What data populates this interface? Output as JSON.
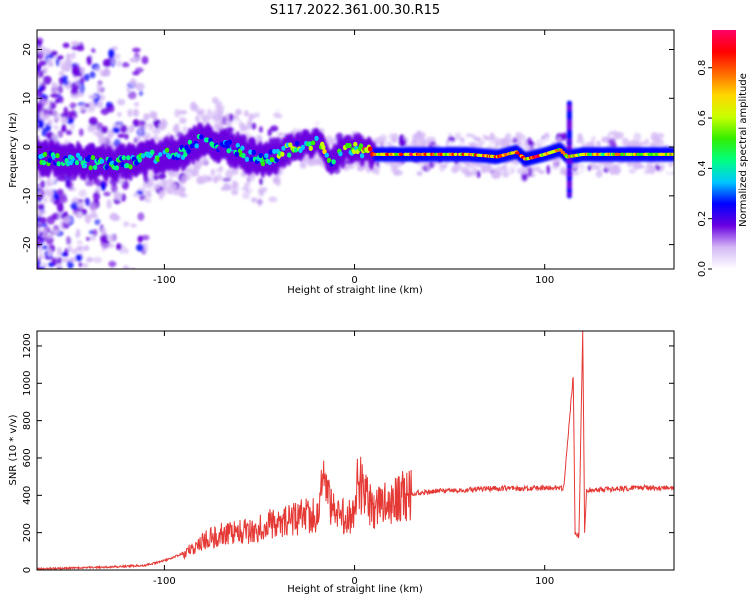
{
  "title": "S117.2022.361.00.30.R15",
  "chart_data": [
    {
      "type": "heatmap",
      "xlabel": "Height of straight line (km)",
      "ylabel": "Frequency (Hz)",
      "xlim": [
        -167,
        168
      ],
      "ylim": [
        -25,
        24
      ],
      "xticks": [
        -100,
        0,
        100
      ],
      "yticks": [
        -20,
        -10,
        0,
        10,
        20
      ],
      "colorbar": {
        "label": "Normalized spectral amplitude",
        "range": [
          0,
          0.95
        ],
        "ticks": [
          0.0,
          0.2,
          0.4,
          0.6,
          0.8
        ],
        "colormap": [
          "#ffffff",
          "#d4b8f5",
          "#6a00e0",
          "#0000ff",
          "#00c8ff",
          "#00ff80",
          "#33ee00",
          "#c8ff00",
          "#ffd700",
          "#ff6a00",
          "#ff0000",
          "#ff0066"
        ]
      },
      "ridge": [
        {
          "x": -167,
          "y": -2.0
        },
        {
          "x": -150,
          "y": -2.5
        },
        {
          "x": -130,
          "y": -3.5
        },
        {
          "x": -110,
          "y": -2.5
        },
        {
          "x": -90,
          "y": -1.0
        },
        {
          "x": -80,
          "y": 1.5
        },
        {
          "x": -70,
          "y": 0.5
        },
        {
          "x": -60,
          "y": -1.0
        },
        {
          "x": -50,
          "y": -2.5
        },
        {
          "x": -40,
          "y": -1.5
        },
        {
          "x": -30,
          "y": 0.0
        },
        {
          "x": -20,
          "y": 1.0
        },
        {
          "x": -12,
          "y": -3.0
        },
        {
          "x": -5,
          "y": -1.0
        },
        {
          "x": 0,
          "y": 0.0
        },
        {
          "x": 10,
          "y": -1.5
        },
        {
          "x": 40,
          "y": -1.5
        },
        {
          "x": 60,
          "y": -1.5
        },
        {
          "x": 75,
          "y": -2.0
        },
        {
          "x": 85,
          "y": -1.0
        },
        {
          "x": 90,
          "y": -2.5
        },
        {
          "x": 100,
          "y": -1.5
        },
        {
          "x": 108,
          "y": -0.5
        },
        {
          "x": 112,
          "y": -2.0
        },
        {
          "x": 120,
          "y": -1.5
        },
        {
          "x": 168,
          "y": -1.5
        }
      ],
      "spike": {
        "x": 113,
        "y_range": [
          -10,
          9
        ]
      }
    },
    {
      "type": "line",
      "xlabel": "Height of straight line (km)",
      "ylabel": "SNR (10 * v/v)",
      "xlim": [
        -167,
        168
      ],
      "ylim": [
        0,
        1280
      ],
      "xticks": [
        -100,
        0,
        100
      ],
      "yticks": [
        0,
        200,
        400,
        600,
        800,
        1000,
        1200
      ],
      "color": "#e53935",
      "series": [
        {
          "x": [
            -167,
            -150,
            -130,
            -110,
            -100,
            -90,
            -80,
            -70,
            -60,
            -50,
            -40,
            -30,
            -20,
            -16,
            -10,
            0,
            1,
            10,
            20,
            30,
            40,
            60,
            80,
            90,
            100,
            110,
            115,
            116,
            118,
            120,
            121,
            122,
            130,
            150,
            168
          ],
          "y": [
            5,
            10,
            15,
            25,
            50,
            90,
            150,
            190,
            200,
            230,
            260,
            280,
            300,
            500,
            280,
            300,
            500,
            330,
            380,
            410,
            420,
            430,
            440,
            435,
            440,
            440,
            1040,
            200,
            180,
            1280,
            200,
            430,
            430,
            440,
            440
          ]
        }
      ]
    }
  ]
}
